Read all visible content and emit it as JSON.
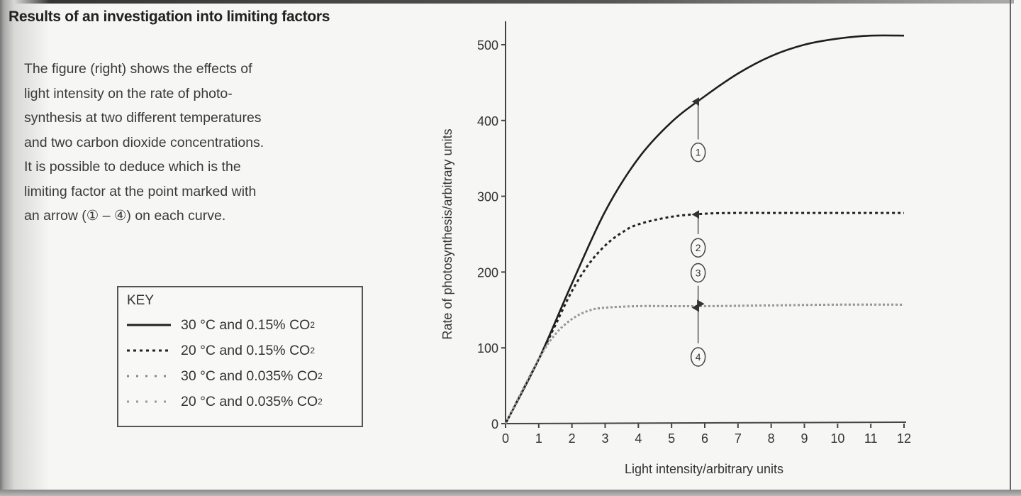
{
  "heading": "Results of an investigation into limiting factors",
  "paragraph_lines": [
    "The figure (right) shows the effects of",
    "light intensity on the rate of photo-",
    "synthesis at two different temperatures",
    "and two carbon dioxide concentrations.",
    "It is possible to deduce which is the",
    "limiting factor at the point marked with",
    "an arrow (① – ④) on each curve."
  ],
  "key": {
    "title": "KEY",
    "entries": [
      {
        "label": "30 °C and 0.15% CO",
        "sub": "2",
        "style": "solid"
      },
      {
        "label": "20 °C and 0.15% CO",
        "sub": "2",
        "style": "dashed"
      },
      {
        "label": "30 °C and 0.035% CO",
        "sub": "2",
        "style": "dotted"
      },
      {
        "label": "20 °C and 0.035% CO",
        "sub": "2",
        "style": "dotted-light"
      }
    ]
  },
  "chart_data": {
    "type": "line",
    "title": "",
    "xlabel": "Light intensity/arbitrary units",
    "ylabel": "Rate of photosynthesis/arbitrary units",
    "xlim": [
      0,
      12
    ],
    "ylim": [
      0,
      500
    ],
    "xticks": [
      0,
      1,
      2,
      3,
      4,
      5,
      6,
      7,
      8,
      9,
      10,
      11,
      12
    ],
    "yticks": [
      0,
      100,
      200,
      300,
      400,
      500
    ],
    "grid": false,
    "legend": "left (separate key box)",
    "series": [
      {
        "name": "30 °C and 0.15% CO2",
        "style": "solid",
        "x": [
          0,
          1,
          2,
          3,
          4,
          5,
          6,
          7,
          8,
          9,
          10,
          11,
          12
        ],
        "y": [
          0,
          85,
          185,
          280,
          350,
          398,
          432,
          462,
          485,
          500,
          508,
          512,
          512
        ]
      },
      {
        "name": "20 °C and 0.15% CO2",
        "style": "dashed",
        "x": [
          0,
          1,
          1.5,
          2,
          2.5,
          3,
          3.5,
          4,
          5,
          6,
          7,
          8,
          9,
          10,
          11,
          12
        ],
        "y": [
          0,
          85,
          130,
          175,
          210,
          235,
          252,
          263,
          273,
          277,
          278,
          278,
          278,
          278,
          278,
          278
        ]
      },
      {
        "name": "30 °C and 0.035% CO2",
        "style": "dotted",
        "x": [
          0,
          1,
          1.5,
          2,
          2.5,
          3,
          4,
          5,
          6,
          8,
          10,
          12
        ],
        "y": [
          0,
          85,
          118,
          138,
          149,
          153,
          155,
          155,
          155,
          156,
          157,
          157
        ]
      },
      {
        "name": "20 °C and 0.035% CO2",
        "style": "dotted-light",
        "x": [
          0,
          1,
          1.5,
          2,
          2.5,
          3,
          4,
          5,
          6,
          8,
          10,
          12
        ],
        "y": [
          0,
          85,
          118,
          138,
          149,
          153,
          155,
          155,
          155,
          156,
          157,
          157
        ]
      }
    ],
    "annotations": [
      {
        "label": "1",
        "x": 5.8,
        "circle_y": 358,
        "arrow_from": 375,
        "arrow_to": 425
      },
      {
        "label": "2",
        "x": 5.8,
        "circle_y": 232,
        "arrow_from": 250,
        "arrow_to": 276
      },
      {
        "label": "3",
        "x": 5.8,
        "circle_y": 199,
        "arrow_from": 182,
        "arrow_to": 158
      },
      {
        "label": "4",
        "x": 5.8,
        "circle_y": 88,
        "arrow_from": 106,
        "arrow_to": 153
      }
    ]
  }
}
